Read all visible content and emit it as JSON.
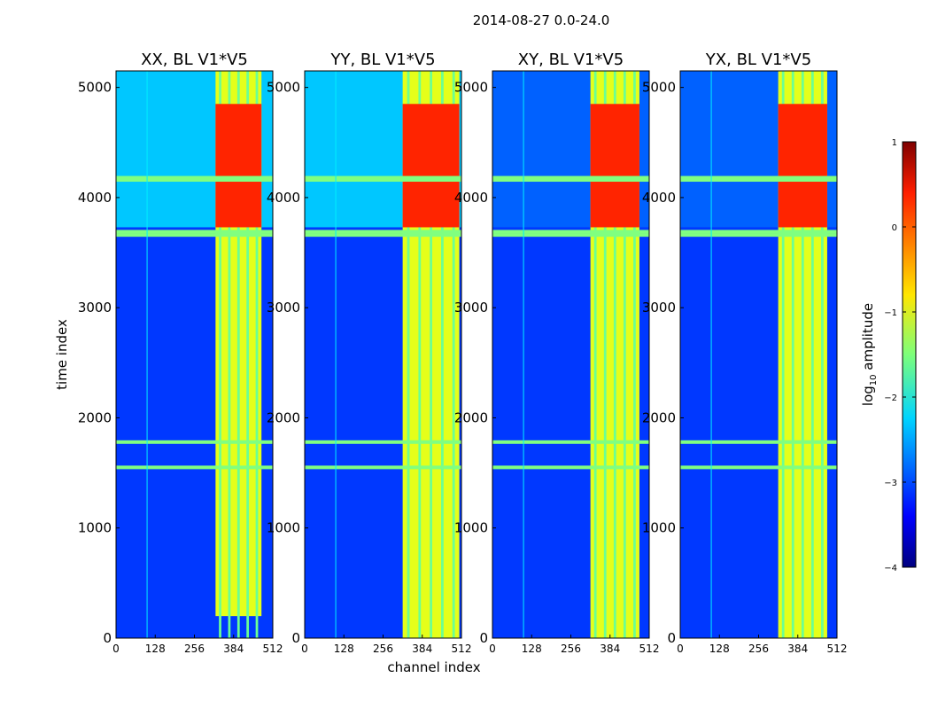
{
  "chart_data": {
    "type": "heatmap",
    "suptitle": "2014-08-27 0.0-24.0",
    "xlabel": "channel index",
    "ylabel": "time index",
    "x_ticks": [
      "0",
      "128",
      "256",
      "384",
      "512"
    ],
    "y_ticks": [
      "0",
      "1000",
      "2000",
      "3000",
      "4000",
      "5000"
    ],
    "xlim": [
      0,
      512
    ],
    "ylim": [
      0,
      5150
    ],
    "colorbar": {
      "label_prefix": "log",
      "label_sub": "10",
      "label_suffix": " amplitude",
      "range": [
        -4,
        1
      ],
      "ticks": [
        "1",
        "0",
        "−1",
        "−2",
        "−3",
        "−4"
      ],
      "colormap": "jet"
    },
    "panels": [
      {
        "title": "XX, BL V1*V5",
        "band_channels": [
          325,
          475
        ],
        "band_start_time": 200,
        "upper_block_time": [
          3730,
          4850
        ]
      },
      {
        "title": "YY, BL V1*V5",
        "band_channels": [
          320,
          505
        ],
        "band_start_time": 0,
        "upper_block_time": [
          3730,
          4850
        ]
      },
      {
        "title": "XY, BL V1*V5",
        "band_channels": [
          320,
          480
        ],
        "band_start_time": 0,
        "upper_block_time": [
          3730,
          4850
        ]
      },
      {
        "title": "YX, BL V1*V5",
        "band_channels": [
          320,
          480
        ],
        "band_start_time": 0,
        "upper_block_time": [
          3730,
          4850
        ]
      }
    ],
    "rfi_rows_time": [
      1550,
      1780,
      3660,
      3690,
      4160,
      4180
    ]
  }
}
